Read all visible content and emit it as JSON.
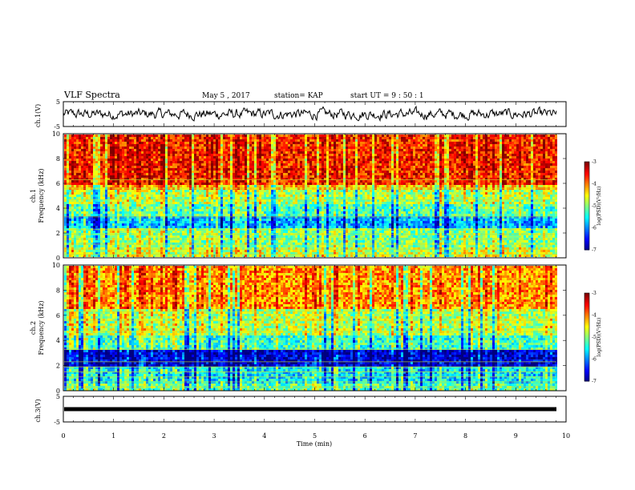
{
  "header": {
    "title": "VLF Spectra",
    "date": "May 5 , 2017",
    "station": "station= KAP",
    "start": "start UT = 9 : 50 : 1"
  },
  "chart_data": [
    {
      "type": "line",
      "name": "ch1-waveform",
      "ylabel": "ch.1(V)",
      "ylim": [
        -5,
        5
      ],
      "y_ticks": [
        "5",
        "-5"
      ],
      "xlim": [
        0,
        10
      ]
    },
    {
      "type": "heatmap",
      "name": "ch1-spectrogram",
      "ylabel": "ch.1\nFrequency (kHz)",
      "ylim": [
        0,
        10
      ],
      "y_ticks": [
        "0",
        "2",
        "4",
        "6",
        "8",
        "10"
      ],
      "xlim": [
        0,
        10
      ],
      "colorbar": {
        "label": "log(PSD)(V²/Hz)",
        "range": [
          -7,
          -3
        ],
        "ticks": [
          "-3",
          "-4",
          "-5",
          "-6",
          "-7"
        ]
      },
      "bands": [
        {
          "from": 6.0,
          "to": 10.0,
          "level": -3.6
        },
        {
          "from": 5.5,
          "to": 6.0,
          "level": -4.3
        },
        {
          "from": 4.5,
          "to": 5.5,
          "level": -4.8
        },
        {
          "from": 3.5,
          "to": 4.5,
          "level": -5.2
        },
        {
          "from": 2.5,
          "to": 3.5,
          "level": -5.8
        },
        {
          "from": 1.0,
          "to": 2.5,
          "level": -5.0
        },
        {
          "from": 0.0,
          "to": 1.0,
          "level": -4.7
        }
      ]
    },
    {
      "type": "heatmap",
      "name": "ch2-spectrogram",
      "ylabel": "ch.2\nFrequency (kHz)",
      "ylim": [
        0,
        10
      ],
      "y_ticks": [
        "0",
        "2",
        "4",
        "6",
        "8",
        "10"
      ],
      "xlim": [
        0,
        10
      ],
      "colorbar": {
        "label": "log(PSD)(V²/Hz)",
        "range": [
          -7,
          -3
        ],
        "ticks": [
          "-3",
          "-4",
          "-5",
          "-6",
          "-7"
        ]
      },
      "bands": [
        {
          "from": 6.5,
          "to": 10.0,
          "level": -4.1
        },
        {
          "from": 4.5,
          "to": 6.5,
          "level": -4.8
        },
        {
          "from": 3.4,
          "to": 4.5,
          "level": -5.3
        },
        {
          "from": 2.0,
          "to": 3.4,
          "level": -6.7
        },
        {
          "from": 0.6,
          "to": 2.0,
          "level": -5.6
        },
        {
          "from": 0.0,
          "to": 0.6,
          "level": -5.2
        }
      ]
    },
    {
      "type": "line",
      "name": "ch3-waveform",
      "ylabel": "ch.3(V)",
      "ylim": [
        -5,
        5
      ],
      "y_ticks": [
        "5",
        "-5"
      ],
      "xlim": [
        0,
        10
      ],
      "values_constant": 0
    }
  ],
  "xaxis": {
    "label": "Time (min)",
    "ticks": [
      "0",
      "1",
      "2",
      "3",
      "4",
      "5",
      "6",
      "7",
      "8",
      "9",
      "10"
    ]
  }
}
